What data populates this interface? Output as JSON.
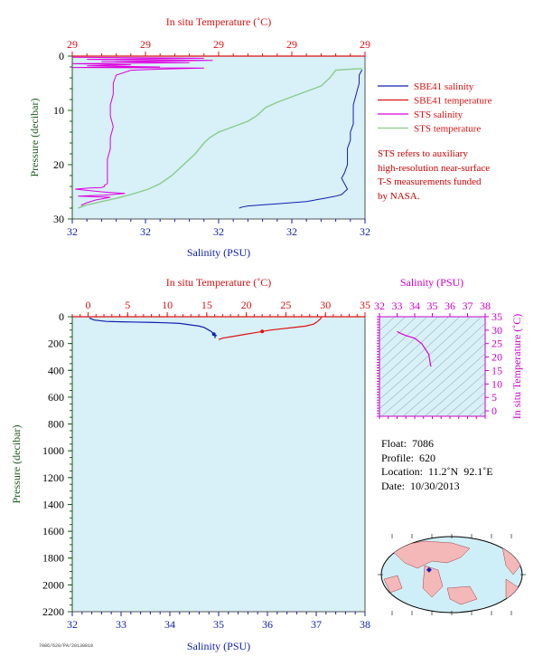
{
  "colors": {
    "plot_bg": "#d8f0f8",
    "salinity": "#1020b0",
    "temperature": "#dd1111",
    "sts_salinity": "#dd00dd",
    "sts_temperature": "#88cc88",
    "pressure_axis": "#1a5c1a",
    "ts_axis": "#cc00cc"
  },
  "chart_data": [
    {
      "id": "near-surface",
      "type": "line",
      "top_title": "In situ Temperature (˚C)",
      "xlabel": "Salinity (PSU)",
      "ylabel": "Pressure (decibar)",
      "top_ticks": [
        "29",
        "29",
        "29",
        "29",
        "29"
      ],
      "bottom_ticks": [
        "32",
        "32",
        "32",
        "32",
        "32"
      ],
      "y_ticks": [
        0,
        10,
        20,
        30
      ],
      "ylim": [
        0,
        30
      ],
      "legend": {
        "placement": "right",
        "entries": [
          {
            "label": "SBE41 salinity",
            "color_key": "salinity"
          },
          {
            "label": "SBE41 temperature",
            "color_key": "temperature"
          },
          {
            "label": "STS salinity",
            "color_key": "sts_salinity"
          },
          {
            "label": "STS temperature",
            "color_key": "sts_temperature"
          }
        ],
        "note": [
          "STS refers to auxiliary",
          "high-resolution near-surface",
          "T-S measurements funded",
          "by NASA."
        ]
      },
      "series": [
        {
          "name": "SBE41 salinity",
          "color_key": "salinity",
          "x_frac": [
            0.99,
            0.98,
            0.98,
            0.97,
            0.96,
            0.96,
            0.96,
            0.95,
            0.95,
            0.94,
            0.94,
            0.94,
            0.93,
            0.92,
            0.93,
            0.94,
            0.93,
            0.92,
            0.9,
            0.88,
            0.86,
            0.84,
            0.82,
            0.8,
            0.75,
            0.7,
            0.65,
            0.6,
            0.58,
            0.57
          ],
          "pressure": [
            2.5,
            3.5,
            5,
            7,
            9,
            11,
            12.5,
            14,
            15.5,
            17,
            18.5,
            20,
            21.5,
            22.5,
            23.5,
            24.5,
            25,
            25.5,
            25.8,
            26,
            26.2,
            26.4,
            26.6,
            26.8,
            27,
            27.2,
            27.4,
            27.6,
            27.8,
            28
          ]
        },
        {
          "name": "STS salinity",
          "color_key": "sts_salinity",
          "x_frac": [
            0.0,
            0.45,
            0.05,
            0.48,
            0.1,
            0.4,
            0.0,
            0.2,
            0.05,
            0.3,
            0.0,
            0.45,
            0.3,
            0.2,
            0.15,
            0.14,
            0.14,
            0.13,
            0.13,
            0.14,
            0.13,
            0.13,
            0.12,
            0.12,
            0.12,
            0.12,
            0.11,
            0.11,
            0.1,
            0.06,
            0.01,
            0.1,
            0.18,
            0.11,
            0.02,
            0.13,
            0.08,
            0.05,
            0.03
          ],
          "pressure": [
            0.2,
            0.4,
            0.6,
            0.8,
            1.0,
            1.2,
            1.4,
            1.6,
            1.8,
            2.0,
            2.1,
            2.2,
            2.4,
            2.6,
            3.5,
            5,
            7,
            9,
            11,
            13,
            15,
            17,
            19,
            21,
            23,
            23.5,
            23.8,
            24,
            24.2,
            24.3,
            24.5,
            25,
            25.3,
            25.6,
            25.8,
            26,
            26.5,
            27,
            27.5
          ]
        },
        {
          "name": "STS temperature",
          "color_key": "sts_temperature",
          "x_frac": [
            0.99,
            0.95,
            0.9,
            0.88,
            0.85,
            0.8,
            0.75,
            0.7,
            0.66,
            0.63,
            0.6,
            0.55,
            0.5,
            0.47,
            0.45,
            0.42,
            0.38,
            0.34,
            0.3,
            0.26,
            0.2,
            0.15,
            0.1,
            0.05,
            0.03,
            0.02
          ],
          "pressure": [
            2.3,
            2.4,
            2.6,
            4,
            5.5,
            6.5,
            7.5,
            8.5,
            9.5,
            11,
            12,
            13,
            14,
            15,
            16,
            18,
            20,
            22,
            23.5,
            24.5,
            25.5,
            26.2,
            26.8,
            27.4,
            27.8,
            28
          ]
        },
        {
          "name": "SBE41 temperature",
          "color_key": "temperature",
          "x_frac": [
            0.0,
            1.0
          ],
          "pressure": [
            0,
            0
          ]
        }
      ]
    },
    {
      "id": "full-profile",
      "type": "line",
      "top_title": "In situ Temperature (˚C)",
      "xlabel": "Salinity (PSU)",
      "ylabel": "Pressure (decibar)",
      "top_ticks": [
        0,
        5,
        10,
        15,
        20,
        25,
        30,
        35
      ],
      "bottom_ticks": [
        32,
        33,
        34,
        35,
        36,
        37,
        38
      ],
      "y_ticks": [
        0,
        200,
        400,
        600,
        800,
        1000,
        1200,
        1400,
        1600,
        1800,
        2000,
        2200
      ],
      "xlim_temperature": [
        -2,
        35
      ],
      "xlim_salinity": [
        32,
        38
      ],
      "ylim": [
        0,
        2200
      ],
      "series": [
        {
          "name": "Salinity",
          "color_key": "salinity",
          "axis": "salinity",
          "x": [
            32.35,
            32.45,
            32.7,
            33.0,
            33.3,
            33.6,
            33.9,
            34.2,
            34.4,
            34.6,
            34.7,
            34.75,
            34.8,
            34.85,
            34.9,
            34.95,
            34.92,
            34.93
          ],
          "y": [
            10,
            25,
            35,
            38,
            40,
            42,
            45,
            50,
            60,
            70,
            80,
            90,
            100,
            110,
            130,
            140,
            150,
            160
          ]
        },
        {
          "name": "Temperature",
          "color_key": "temperature",
          "axis": "temperature",
          "x": [
            29.5,
            29.3,
            29.1,
            28.9,
            28.5,
            27.5,
            26.0,
            24.5,
            23.0,
            22.0,
            21.0,
            20.0,
            19.0,
            18.0,
            17.0,
            16.5
          ],
          "y": [
            5,
            20,
            30,
            40,
            55,
            70,
            80,
            90,
            100,
            110,
            120,
            130,
            140,
            150,
            160,
            170
          ]
        }
      ]
    },
    {
      "id": "ts-diagram",
      "type": "line",
      "top_title": "Salinity (PSU)",
      "ylabel": "In situ Temperature (˚C)",
      "top_ticks": [
        32,
        33,
        34,
        35,
        36,
        37,
        38
      ],
      "right_ticks": [
        0,
        5,
        10,
        15,
        20,
        25,
        30,
        35
      ],
      "xlim": [
        32,
        38
      ],
      "ylim": [
        -2,
        35
      ],
      "series": [
        {
          "name": "T-S",
          "color_key": "sts_salinity",
          "x": [
            33.0,
            33.2,
            33.5,
            34.0,
            34.4,
            34.6,
            34.8,
            34.85,
            34.9,
            34.93
          ],
          "y": [
            29.5,
            28.8,
            28.0,
            27.0,
            25.0,
            23.0,
            21.0,
            19.0,
            17.0,
            16.5
          ]
        }
      ]
    }
  ],
  "float_info": {
    "float": "Float:  7086",
    "profile": "Profile:  620",
    "location": "Location:  11.2˚N  92.1˚E",
    "date": "Date:  10/30/2013"
  },
  "map": {
    "marker_lat": 11.2,
    "marker_lon": 92.1
  },
  "footer_code": "7086/620/PA/20130810"
}
